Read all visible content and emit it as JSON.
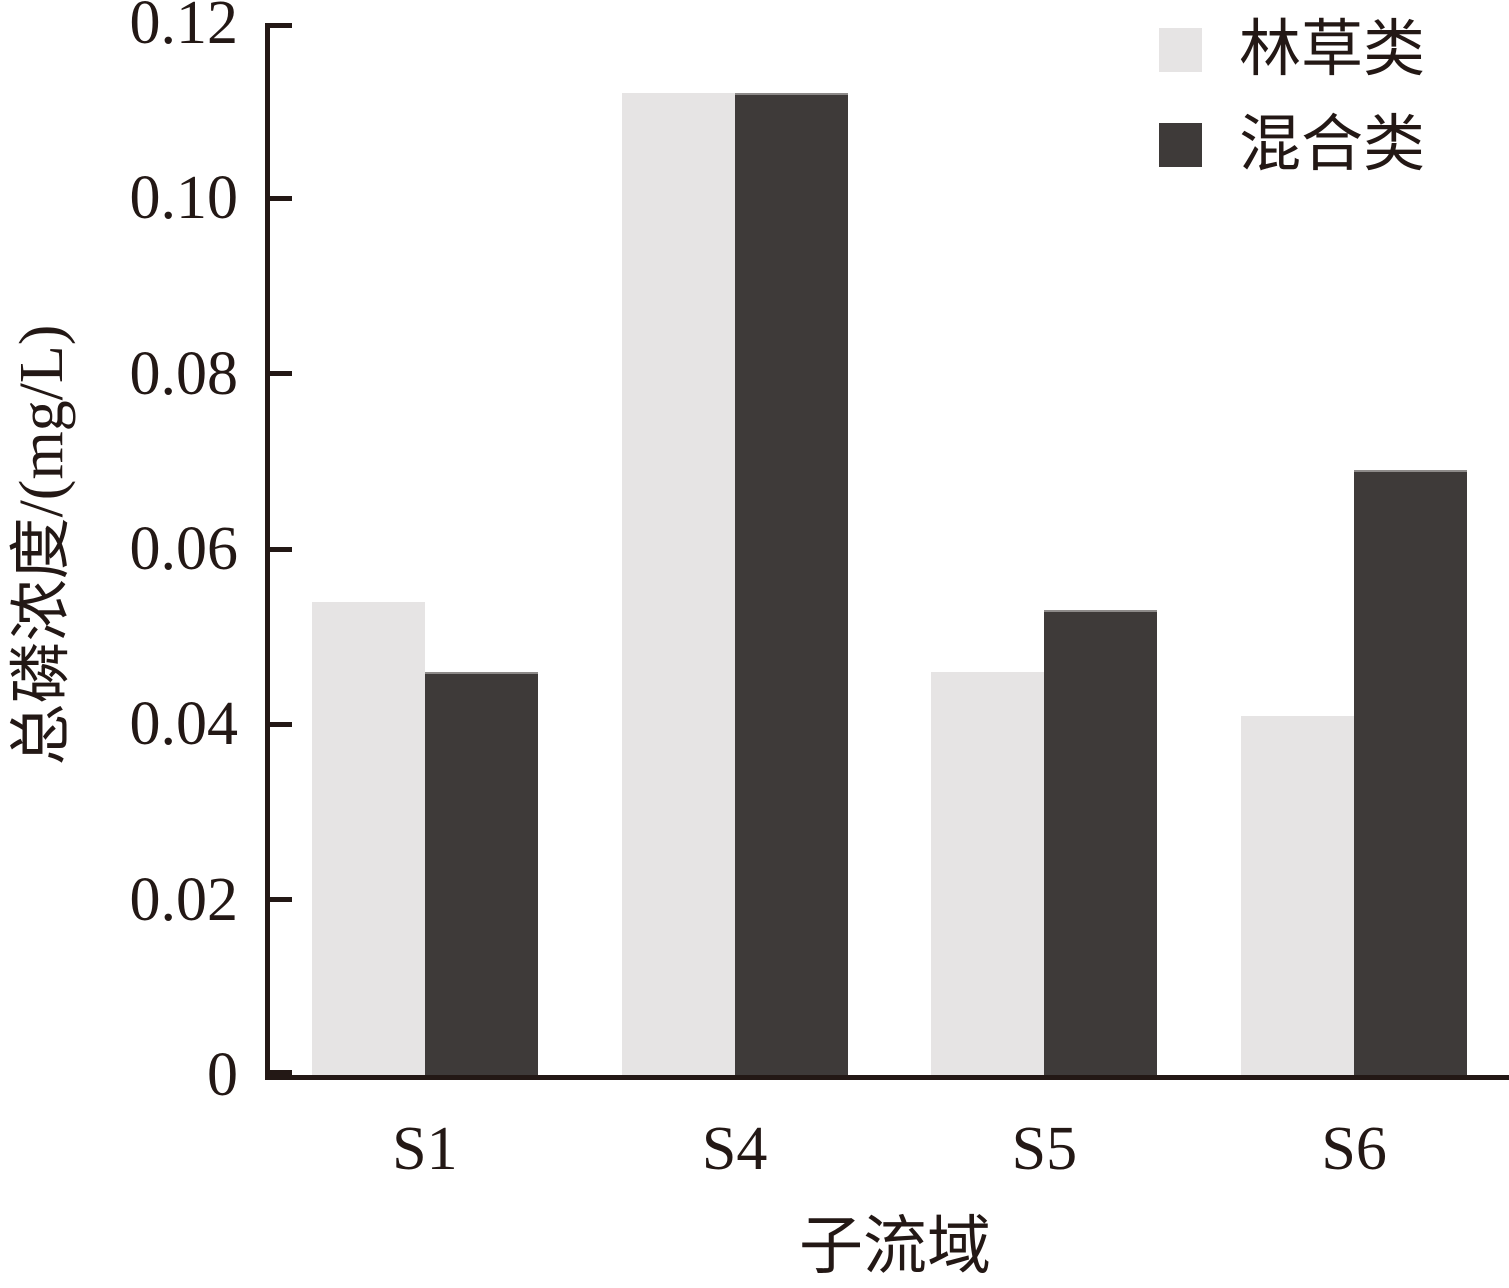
{
  "chart_data": {
    "type": "bar",
    "title": "",
    "categories": [
      "S1",
      "S4",
      "S5",
      "S6"
    ],
    "series": [
      {
        "name": "林草类",
        "color": "#e6e4e4",
        "values": [
          0.054,
          0.112,
          0.046,
          0.041
        ]
      },
      {
        "name": "混合类",
        "color": "#3e3a39",
        "values": [
          0.046,
          0.112,
          0.053,
          0.069
        ]
      }
    ],
    "xlabel": "子流域",
    "ylabel": "总磷浓度/(mg/L)",
    "ylim": [
      0,
      0.12
    ],
    "yticks": [
      0,
      0.02,
      0.04,
      0.06,
      0.08,
      0.1,
      0.12
    ],
    "ytick_labels": [
      "0",
      "0.02",
      "0.04",
      "0.06",
      "0.08",
      "0.10",
      "0.12"
    ],
    "grid": false,
    "legend_position": "top-right",
    "axis_color": "#231815",
    "bar_edge_color": "#8d8a89"
  }
}
